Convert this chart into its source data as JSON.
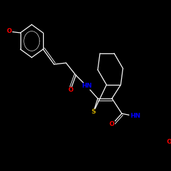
{
  "background_color": "#000000",
  "bond_color": "#ffffff",
  "atom_colors": {
    "O": "#ff0000",
    "N": "#0000ff",
    "S": "#ccaa00",
    "C": "#ffffff"
  },
  "font_size": 6.5,
  "lw": 0.9
}
